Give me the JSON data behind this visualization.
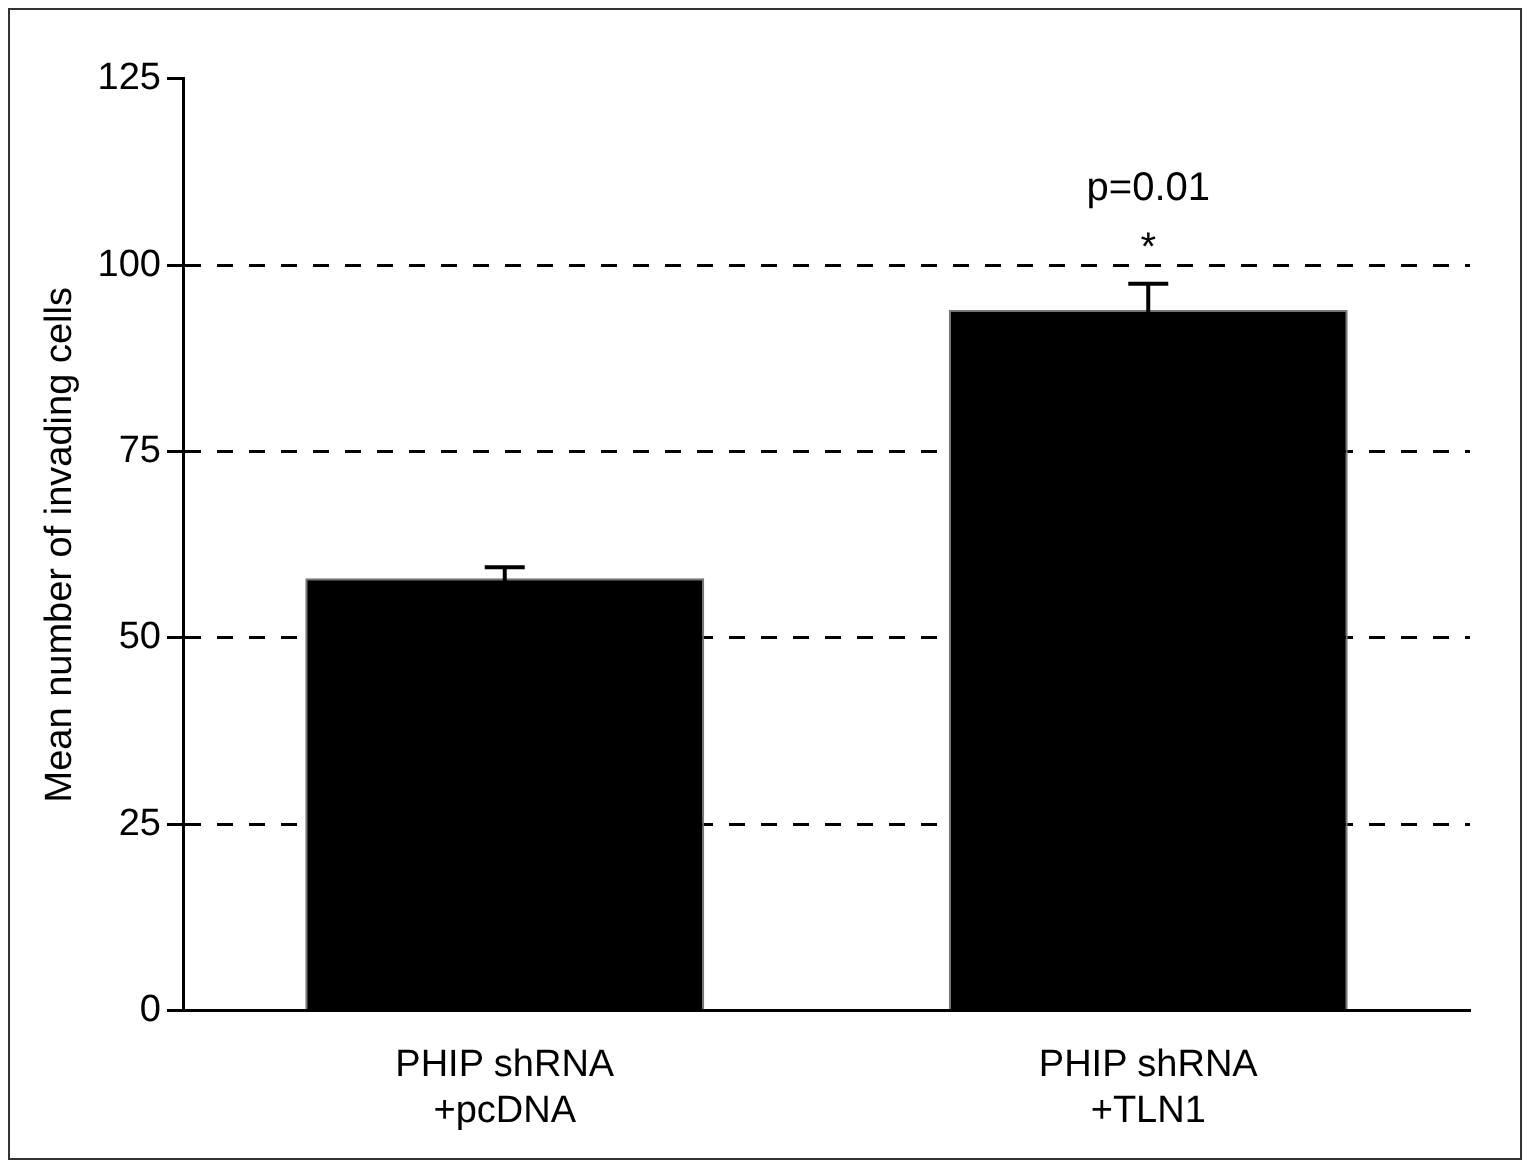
{
  "chart_data": {
    "type": "bar",
    "ylabel": "Mean number of invading cells",
    "categories": [
      "PHIP shRNA\n+pcDNA",
      "PHIP shRNA\n+TLN1"
    ],
    "values": [
      58,
      94
    ],
    "errors": [
      1.5,
      3.5
    ],
    "color": "#000000",
    "ylim": [
      0,
      125
    ],
    "yticks": [
      0,
      25,
      50,
      75,
      100,
      125
    ],
    "grid": "y",
    "legend": false,
    "annotations": [
      "p=0.01",
      "*"
    ]
  }
}
